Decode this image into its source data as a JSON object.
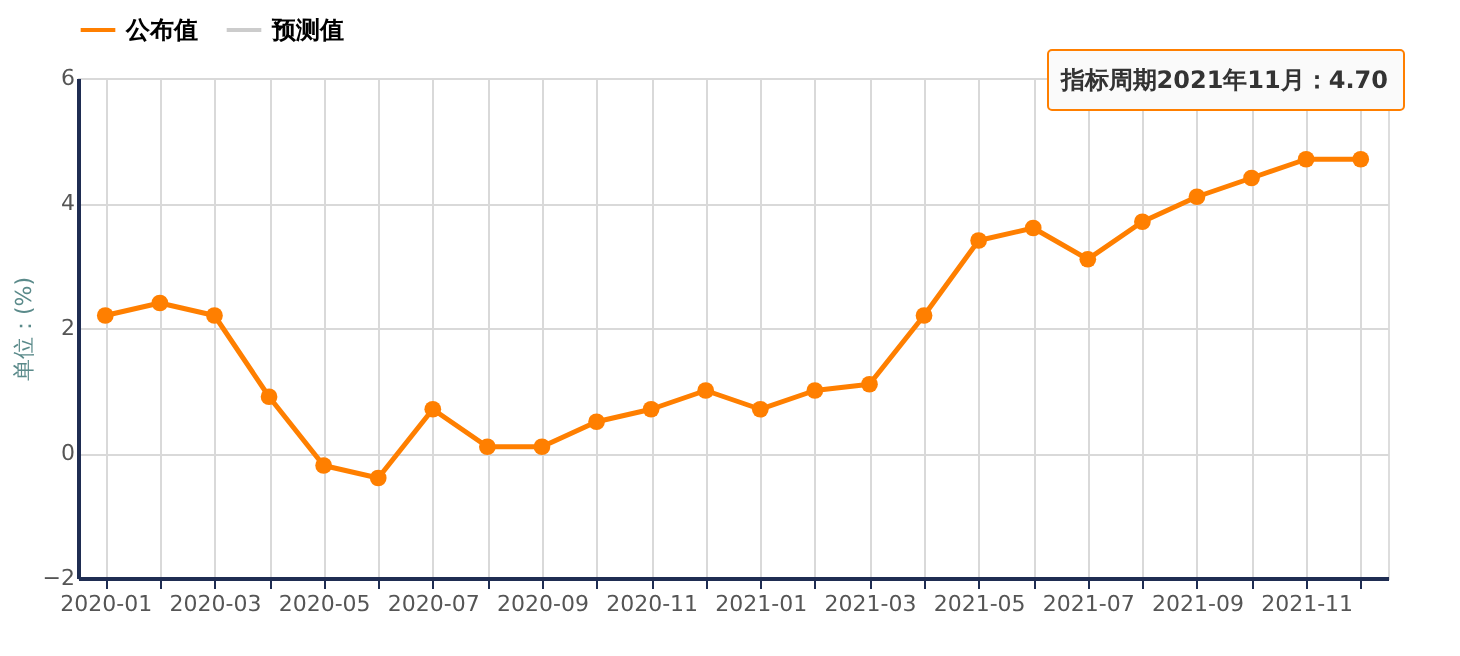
{
  "chart_data": {
    "type": "line",
    "ylabel": "单位：(%)",
    "categories": [
      "2020-01",
      null,
      "2020-03",
      null,
      "2020-05",
      null,
      "2020-07",
      null,
      "2020-09",
      null,
      "2020-11",
      null,
      "2021-01",
      null,
      "2021-03",
      null,
      "2021-05",
      null,
      "2021-07",
      null,
      "2021-09",
      null,
      "2021-11",
      null
    ],
    "series": [
      {
        "name": "公布值",
        "color": "#ff7f00",
        "values": [
          2.2,
          2.4,
          2.2,
          0.9,
          -0.2,
          -0.4,
          0.7,
          0.1,
          0.1,
          0.5,
          0.7,
          1.0,
          0.7,
          1.0,
          1.1,
          2.2,
          3.4,
          3.6,
          3.1,
          3.7,
          4.1,
          4.4,
          4.7,
          4.7
        ]
      },
      {
        "name": "预测值",
        "color": "#cccccc",
        "values": [
          null,
          null,
          null,
          null,
          null,
          null,
          null,
          null,
          null,
          null,
          null,
          null,
          null,
          null,
          null,
          null,
          null,
          null,
          null,
          null,
          null,
          null,
          null,
          null
        ]
      }
    ],
    "ylim": [
      -2,
      6
    ],
    "yticks": [
      -2,
      0,
      2,
      4,
      6
    ],
    "grid": true,
    "legend": "top",
    "marker": "circle",
    "line_style": "solid",
    "annotations": [
      "指标周期2021年11月：4.70"
    ]
  }
}
